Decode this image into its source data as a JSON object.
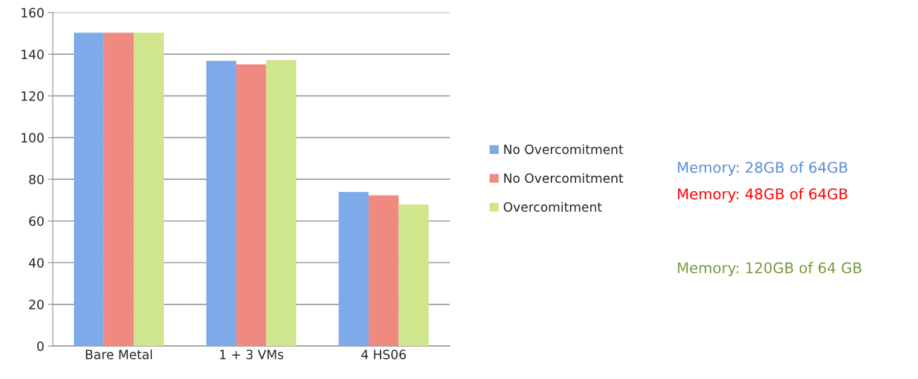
{
  "chart_data": {
    "type": "bar",
    "categories": [
      "Bare Metal",
      "1 + 3 VMs",
      "4 HS06"
    ],
    "series": [
      {
        "name": "No Overcomitment",
        "color": "#7eaaea",
        "values": [
          150.3,
          136.8,
          73.9
        ]
      },
      {
        "name": "No Overcomitment",
        "color": "#f08a80",
        "values": [
          150.3,
          135.1,
          72.3
        ]
      },
      {
        "name": "Overcomitment",
        "color": "#cfe68c",
        "values": [
          150.3,
          137.2,
          67.9
        ]
      }
    ],
    "ylim": [
      0,
      160
    ],
    "yticks": [
      0,
      20,
      40,
      60,
      80,
      100,
      120,
      140,
      160
    ],
    "grid": "y",
    "legend": "right",
    "annotations": [
      "Memory: 28GB of 64GB",
      "Memory: 48GB of 64GB",
      "Memory: 120GB of 64 GB"
    ]
  }
}
